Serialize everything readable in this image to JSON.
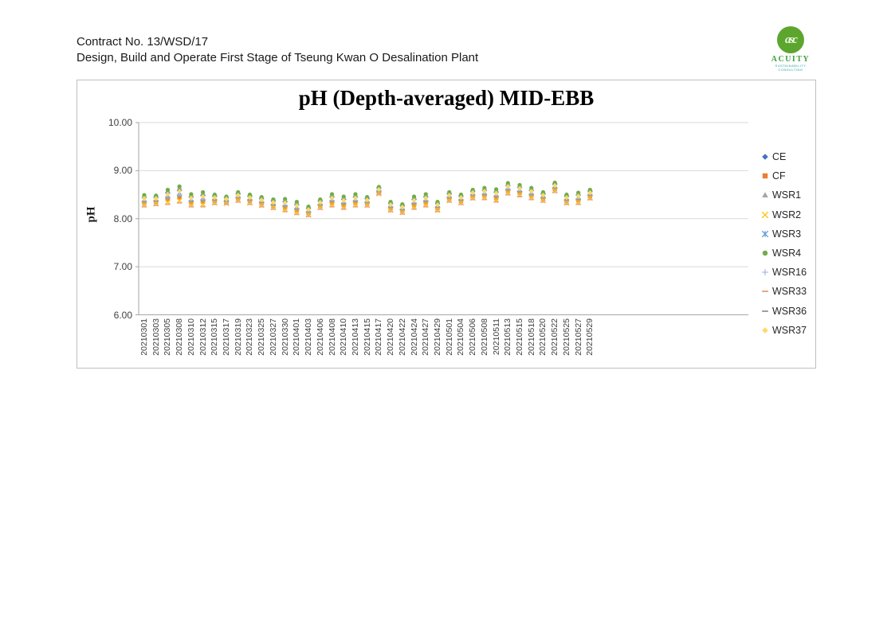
{
  "page": {
    "header": {
      "line1": "Contract No. 13/WSD/17",
      "line2": "Design, Build and Operate First Stage of Tseung Kwan O Desalination Plant"
    },
    "logo": {
      "monogram": "asc",
      "name": "ACUITY",
      "tagline1": "SUSTAINABILITY",
      "tagline2": "CONSULTING",
      "circle_color": "#5ca62e",
      "name_color": "#3f9e3f",
      "tagline_color": "#2e9e9e"
    }
  },
  "chart_data": {
    "type": "scatter",
    "title": "pH (Depth-averaged) MID-EBB",
    "xlabel": "",
    "ylabel": "pH",
    "ylim": [
      6.0,
      10.0
    ],
    "ytick_step": 1.0,
    "ytick_labels": [
      "10.00",
      "9.00",
      "8.00",
      "7.00",
      "6.00"
    ],
    "grid": true,
    "legend_position": "right",
    "grid_color": "#d9d9d9",
    "axis_color": "#a6a6a6",
    "categories": [
      "20210301",
      "20210303",
      "20210305",
      "20210308",
      "20210310",
      "20210312",
      "20210315",
      "20210317",
      "20210319",
      "20210323",
      "20210325",
      "20210327",
      "20210330",
      "20210401",
      "20210403",
      "20210406",
      "20210408",
      "20210410",
      "20210413",
      "20210415",
      "20210417",
      "20210420",
      "20210422",
      "20210424",
      "20210427",
      "20210429",
      "20210501",
      "20210504",
      "20210506",
      "20210508",
      "20210511",
      "20210513",
      "20210515",
      "20210518",
      "20210520",
      "20210522",
      "20210525",
      "20210527",
      "20210529"
    ],
    "series": [
      {
        "name": "CE",
        "marker": "diamond",
        "color": "#4472C4",
        "values": [
          8.44,
          8.44,
          8.53,
          8.59,
          8.45,
          8.48,
          8.46,
          8.42,
          8.51,
          8.46,
          8.41,
          8.36,
          8.35,
          8.29,
          8.21,
          8.36,
          8.45,
          8.4,
          8.45,
          8.41,
          8.62,
          8.31,
          8.26,
          8.4,
          8.45,
          8.31,
          8.51,
          8.46,
          8.56,
          8.59,
          8.55,
          8.69,
          8.65,
          8.59,
          8.51,
          8.71,
          8.46,
          8.49,
          8.56
        ]
      },
      {
        "name": "CF",
        "marker": "square",
        "color": "#ED7D31",
        "values": [
          8.33,
          8.35,
          8.4,
          8.44,
          8.33,
          8.35,
          8.37,
          8.35,
          8.42,
          8.37,
          8.32,
          8.27,
          8.23,
          8.17,
          8.12,
          8.27,
          8.33,
          8.28,
          8.33,
          8.32,
          8.55,
          8.22,
          8.17,
          8.28,
          8.33,
          8.22,
          8.42,
          8.37,
          8.47,
          8.48,
          8.43,
          8.58,
          8.54,
          8.48,
          8.42,
          8.62,
          8.37,
          8.38,
          8.47
        ]
      },
      {
        "name": "WSR1",
        "marker": "triangle",
        "color": "#A5A5A5",
        "values": [
          8.48,
          8.47,
          8.59,
          8.65,
          8.5,
          8.54,
          8.49,
          8.45,
          8.54,
          8.49,
          8.44,
          8.39,
          8.4,
          8.34,
          8.24,
          8.39,
          8.5,
          8.45,
          8.5,
          8.44,
          8.65,
          8.34,
          8.29,
          8.45,
          8.5,
          8.34,
          8.54,
          8.49,
          8.59,
          8.63,
          8.6,
          8.73,
          8.69,
          8.63,
          8.54,
          8.74,
          8.49,
          8.53,
          8.59
        ]
      },
      {
        "name": "WSR2",
        "marker": "x",
        "color": "#FFC000",
        "values": [
          8.29,
          8.31,
          8.35,
          8.38,
          8.29,
          8.3,
          8.33,
          8.32,
          8.38,
          8.33,
          8.28,
          8.23,
          8.19,
          8.13,
          8.08,
          8.23,
          8.29,
          8.24,
          8.29,
          8.28,
          8.52,
          8.18,
          8.13,
          8.24,
          8.29,
          8.18,
          8.38,
          8.33,
          8.43,
          8.44,
          8.39,
          8.54,
          8.5,
          8.44,
          8.38,
          8.58,
          8.33,
          8.34,
          8.43
        ]
      },
      {
        "name": "WSR3",
        "marker": "star",
        "color": "#5B9BD5",
        "values": [
          8.4,
          8.41,
          8.49,
          8.54,
          8.41,
          8.44,
          8.43,
          8.4,
          8.48,
          8.43,
          8.38,
          8.33,
          8.31,
          8.25,
          8.18,
          8.33,
          8.41,
          8.36,
          8.41,
          8.38,
          8.6,
          8.28,
          8.23,
          8.36,
          8.41,
          8.28,
          8.48,
          8.43,
          8.53,
          8.55,
          8.51,
          8.65,
          8.61,
          8.55,
          8.48,
          8.68,
          8.43,
          8.45,
          8.53
        ]
      },
      {
        "name": "WSR4",
        "marker": "circle",
        "color": "#70AD47",
        "values": [
          8.49,
          8.48,
          8.6,
          8.67,
          8.51,
          8.55,
          8.5,
          8.46,
          8.55,
          8.5,
          8.45,
          8.4,
          8.41,
          8.35,
          8.25,
          8.4,
          8.51,
          8.46,
          8.51,
          8.45,
          8.66,
          8.35,
          8.3,
          8.46,
          8.51,
          8.35,
          8.55,
          8.5,
          8.6,
          8.64,
          8.61,
          8.74,
          8.7,
          8.64,
          8.55,
          8.75,
          8.5,
          8.54,
          8.6
        ]
      },
      {
        "name": "WSR16",
        "marker": "plus",
        "color": "#A9B8E8",
        "values": [
          8.37,
          8.38,
          8.45,
          8.5,
          8.38,
          8.4,
          8.4,
          8.38,
          8.45,
          8.4,
          8.35,
          8.3,
          8.28,
          8.22,
          8.15,
          8.3,
          8.38,
          8.33,
          8.38,
          8.35,
          8.58,
          8.25,
          8.2,
          8.33,
          8.38,
          8.25,
          8.45,
          8.4,
          8.5,
          8.52,
          8.48,
          8.62,
          8.58,
          8.52,
          8.45,
          8.65,
          8.4,
          8.42,
          8.5
        ]
      },
      {
        "name": "WSR33",
        "marker": "dash",
        "color": "#E8A87C",
        "values": [
          8.25,
          8.28,
          8.3,
          8.33,
          8.25,
          8.25,
          8.3,
          8.3,
          8.35,
          8.3,
          8.25,
          8.2,
          8.15,
          8.09,
          8.05,
          8.2,
          8.25,
          8.2,
          8.25,
          8.25,
          8.5,
          8.15,
          8.1,
          8.2,
          8.25,
          8.15,
          8.35,
          8.3,
          8.4,
          8.4,
          8.35,
          8.5,
          8.46,
          8.4,
          8.35,
          8.55,
          8.3,
          8.3,
          8.4
        ]
      },
      {
        "name": "WSR36",
        "marker": "dash",
        "color": "#9E9E9E",
        "values": [
          8.35,
          8.37,
          8.43,
          8.47,
          8.36,
          8.38,
          8.39,
          8.37,
          8.44,
          8.39,
          8.34,
          8.29,
          8.26,
          8.2,
          8.14,
          8.29,
          8.36,
          8.31,
          8.36,
          8.34,
          8.57,
          8.24,
          8.19,
          8.31,
          8.36,
          8.24,
          8.44,
          8.39,
          8.49,
          8.5,
          8.46,
          8.6,
          8.56,
          8.5,
          8.44,
          8.64,
          8.39,
          8.4,
          8.49
        ]
      },
      {
        "name": "WSR37",
        "marker": "diamond",
        "color": "#FFD966",
        "values": [
          8.42,
          8.42,
          8.51,
          8.57,
          8.43,
          8.46,
          8.44,
          8.41,
          8.49,
          8.44,
          8.39,
          8.34,
          8.33,
          8.27,
          8.19,
          8.34,
          8.43,
          8.38,
          8.43,
          8.39,
          8.61,
          8.29,
          8.24,
          8.38,
          8.43,
          8.29,
          8.49,
          8.44,
          8.54,
          8.57,
          8.53,
          8.67,
          8.63,
          8.57,
          8.49,
          8.69,
          8.44,
          8.47,
          8.54
        ]
      }
    ]
  }
}
